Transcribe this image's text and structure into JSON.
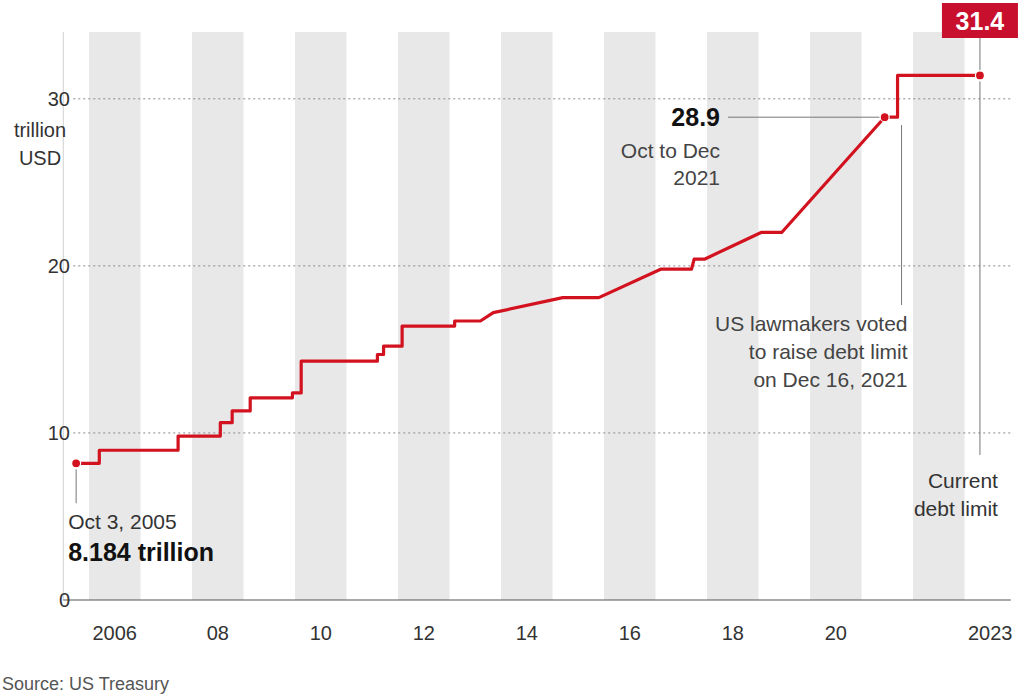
{
  "chart_data": {
    "type": "line",
    "color": "#d3121f",
    "y_label": [
      "trillion",
      "USD"
    ],
    "source": "Source: US Treasury",
    "x": [
      2005.75,
      2006.2,
      2006.2,
      2007.73,
      2007.73,
      2008.55,
      2008.55,
      2008.78,
      2008.78,
      2009.13,
      2009.13,
      2009.95,
      2009.95,
      2010.12,
      2010.12,
      2011.6,
      2011.6,
      2011.72,
      2011.72,
      2012.08,
      2012.08,
      2013.1,
      2013.1,
      2013.6,
      2013.85,
      2015.2,
      2015.9,
      2017.1,
      2017.7,
      2017.75,
      2017.95,
      2019.05,
      2019.45,
      2021.45,
      2021.7,
      2021.7,
      2023.3
    ],
    "values": [
      8.184,
      8.184,
      8.965,
      8.965,
      9.815,
      9.815,
      10.615,
      10.615,
      11.315,
      11.315,
      12.104,
      12.104,
      12.394,
      12.394,
      14.294,
      14.294,
      14.694,
      14.694,
      15.194,
      15.194,
      16.394,
      16.394,
      16.7,
      16.7,
      17.2,
      18.1,
      18.1,
      19.8,
      19.8,
      20.4,
      20.4,
      22,
      22,
      28.9,
      28.9,
      31.4,
      31.4
    ],
    "xlim": [
      2005.5,
      2023.9
    ],
    "xticks": [
      2006,
      {
        "value": 2008,
        "label": "08"
      },
      {
        "value": 2010,
        "label": "10"
      },
      {
        "value": 2012,
        "label": "12"
      },
      {
        "value": 2014,
        "label": "14"
      },
      {
        "value": 2016,
        "label": "16"
      },
      {
        "value": 2018,
        "label": "18"
      },
      {
        "value": 2020,
        "label": "20"
      },
      2023
    ],
    "ylim": [
      0,
      34
    ],
    "yticks": [
      0,
      10,
      20,
      30
    ],
    "grid": true,
    "annotations": [
      {
        "x": 2005.75,
        "y": 8.184,
        "text": [
          "Oct 3, 2005"
        ],
        "value_label": "8.184 trillion"
      },
      {
        "x": 2021.45,
        "y": 28.9,
        "text": [
          "Oct to Dec",
          "2021"
        ],
        "value_label": "28.9"
      },
      {
        "x": 2021.7,
        "text": [
          "US lawmakers voted",
          "to raise debt limit",
          "on Dec 16, 2021"
        ]
      },
      {
        "x": 2023.3,
        "y": 31.4,
        "text": [
          "Current",
          "debt limit"
        ],
        "value_label": "31.4"
      }
    ]
  }
}
